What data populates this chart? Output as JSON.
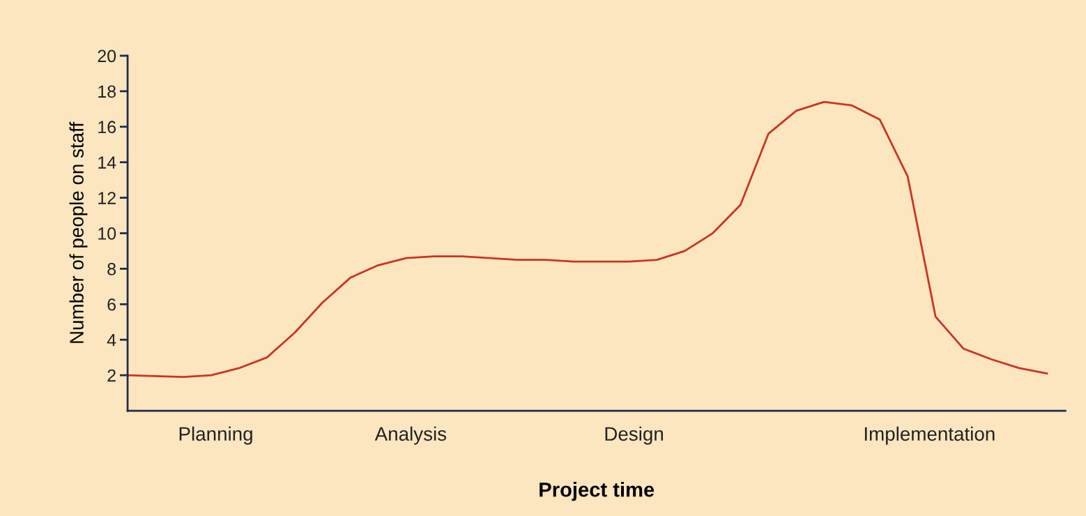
{
  "chart_data": {
    "type": "line",
    "xlabel": "Project time",
    "ylabel": "Number of people on staff",
    "categories": [
      null,
      null,
      null,
      null,
      null,
      null,
      null,
      null,
      null,
      null,
      null,
      null,
      null,
      null,
      null,
      null,
      null,
      null,
      null,
      null,
      null,
      null,
      null,
      null,
      null,
      null,
      null,
      null,
      null,
      null,
      null,
      null,
      null,
      null
    ],
    "series": [
      {
        "color": "#cc3322",
        "values": [
          2.0,
          1.95,
          1.9,
          2.0,
          2.4,
          3.0,
          4.4,
          6.1,
          7.5,
          8.2,
          8.6,
          8.7,
          8.7,
          8.6,
          8.5,
          8.5,
          8.4,
          8.4,
          8.4,
          8.5,
          9.0,
          10.0,
          11.6,
          15.6,
          16.9,
          17.4,
          17.2,
          16.4,
          13.2,
          5.3,
          3.5,
          2.9,
          2.4,
          2.1
        ]
      }
    ],
    "annotations": [
      "Planning",
      "Analysis",
      "Design",
      "Implementation"
    ],
    "ylim": [
      0,
      20
    ],
    "yticks": [
      2,
      4,
      6,
      8,
      10,
      12,
      14,
      16,
      18,
      20
    ]
  }
}
